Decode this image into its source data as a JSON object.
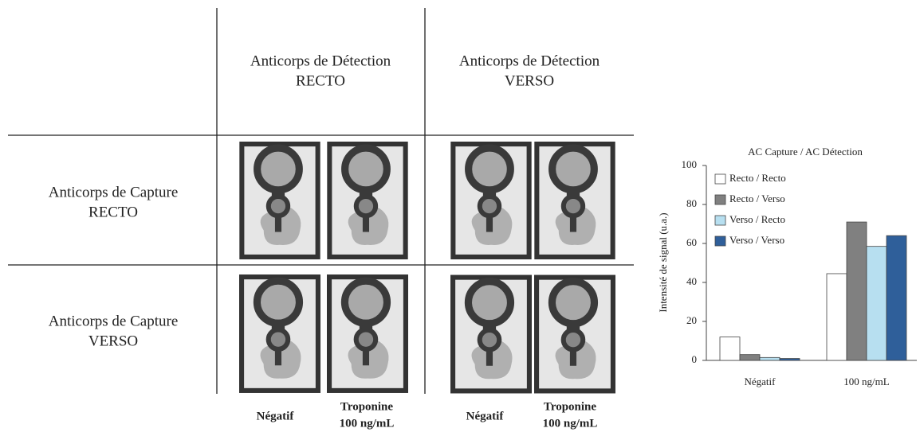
{
  "grid": {
    "column_headers": [
      [
        "Anticorps de Détection",
        "RECTO"
      ],
      [
        "Anticorps de Détection",
        "VERSO"
      ]
    ],
    "row_headers": [
      [
        "Anticorps de Capture",
        "RECTO"
      ],
      [
        "Anticorps de Capture",
        "VERSO"
      ]
    ],
    "sample_labels": [
      [
        "Négatif"
      ],
      [
        "Troponine",
        "100 ng/mL"
      ],
      [
        "Négatif"
      ],
      [
        "Troponine",
        "100 ng/mL"
      ]
    ]
  },
  "chart_data": {
    "type": "bar",
    "title": "AC Capture / AC Détection",
    "y_label": "Intensité de signal (u.a.)",
    "categories": [
      "Négatif",
      "100 ng/mL"
    ],
    "series": [
      {
        "name": "Recto / Recto",
        "color": "#ffffff",
        "values": [
          12,
          44.5
        ]
      },
      {
        "name": "Recto / Verso",
        "color": "#808080",
        "values": [
          3,
          71
        ]
      },
      {
        "name": "Verso / Recto",
        "color": "#b7dff0",
        "values": [
          1.5,
          58.5
        ]
      },
      {
        "name": "Verso / Verso",
        "color": "#2f5f9a",
        "values": [
          1,
          64
        ]
      }
    ],
    "ylim": [
      0,
      100
    ],
    "yticks": [
      0,
      20,
      40,
      60,
      80,
      100
    ],
    "legend": "upper-left",
    "grid": false
  }
}
